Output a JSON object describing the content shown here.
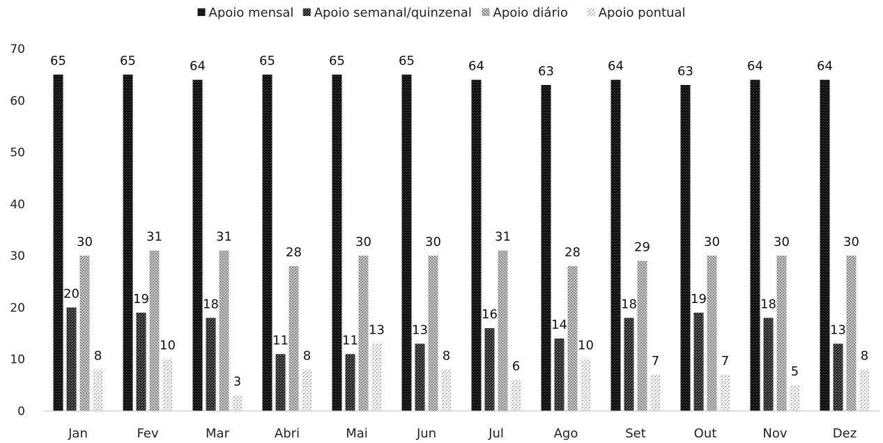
{
  "chart_data": {
    "type": "bar",
    "title": "",
    "xlabel": "",
    "ylabel": "",
    "ylim": [
      0,
      70
    ],
    "yticks": [
      0,
      10,
      20,
      30,
      40,
      50,
      60,
      70
    ],
    "grid": false,
    "legend_position": "top",
    "categories": [
      "Jan",
      "Fev",
      "Mar",
      "Abri",
      "Mai",
      "Jun",
      "Jul",
      "Ago",
      "Set",
      "Out",
      "Nov",
      "Dez"
    ],
    "series": [
      {
        "name": "Apoio mensal",
        "color": "#1a1a1a",
        "values": [
          65,
          65,
          64,
          65,
          65,
          65,
          64,
          63,
          64,
          63,
          64,
          64
        ]
      },
      {
        "name": "Apoio semanal/quinzenal",
        "color": "#3d3d3d",
        "values": [
          20,
          19,
          18,
          11,
          11,
          13,
          16,
          14,
          18,
          19,
          18,
          13
        ]
      },
      {
        "name": "Apoio diário",
        "color": "#9a9a9a",
        "values": [
          30,
          31,
          31,
          28,
          30,
          30,
          31,
          28,
          29,
          30,
          30,
          30
        ]
      },
      {
        "name": "Apoio pontual",
        "color": "#d6d6d6",
        "values": [
          8,
          10,
          3,
          8,
          13,
          8,
          6,
          10,
          7,
          7,
          5,
          8
        ]
      }
    ]
  }
}
